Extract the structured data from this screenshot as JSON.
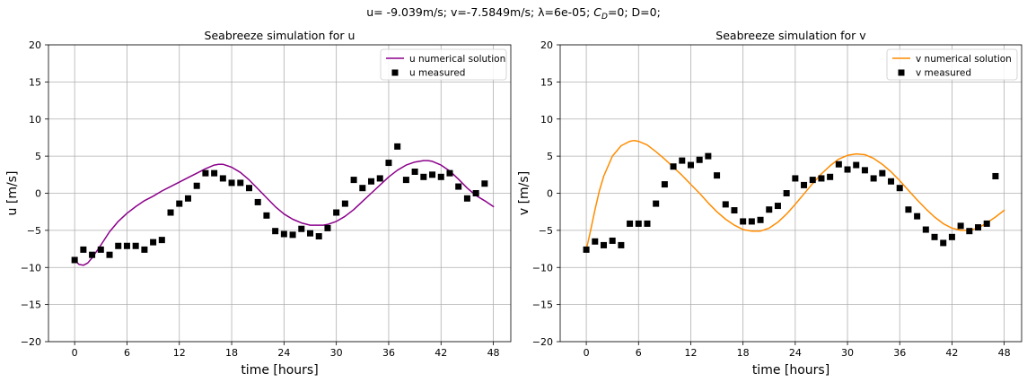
{
  "figure": {
    "suptitle": "u= -9.039m/s; v=-7.5849m/s; λ=6e-05; C_D=0; D=0;",
    "suptitle_parts": {
      "prefix": "u= -9.039m/s; v=-7.5849m/s; λ=6e-05; ",
      "cd_main": "C",
      "cd_sub": "D",
      "suffix": "=0; D=0;"
    }
  },
  "chart_data": [
    {
      "type": "line",
      "title": "Seabreeze simulation for u",
      "xlabel": "time [hours]",
      "ylabel": "u [m/s]",
      "xlim": [
        -3,
        50
      ],
      "ylim": [
        -20,
        20
      ],
      "xticks": [
        0,
        6,
        12,
        18,
        24,
        30,
        36,
        42,
        48
      ],
      "yticks": [
        -20,
        -15,
        -10,
        -5,
        0,
        5,
        10,
        15,
        20
      ],
      "grid": true,
      "legend_position": "top-right",
      "line_color": "#8b008b",
      "marker_color": "#000000",
      "series": [
        {
          "name": "u numerical solution",
          "kind": "line",
          "x": [
            0,
            0.5,
            1,
            1.5,
            2,
            3,
            4,
            5,
            6,
            7,
            8,
            9,
            10,
            11,
            12,
            13,
            14,
            15,
            16,
            16.5,
            17,
            18,
            19,
            20,
            21,
            22,
            23,
            24,
            25,
            26,
            27,
            28,
            28.5,
            29,
            30,
            31,
            32,
            33,
            34,
            35,
            36,
            37,
            38,
            39,
            40,
            40.5,
            41,
            42,
            43,
            44,
            45,
            46,
            47,
            48
          ],
          "y": [
            -9.0,
            -9.6,
            -9.7,
            -9.4,
            -8.7,
            -7.0,
            -5.2,
            -3.8,
            -2.7,
            -1.8,
            -1.0,
            -0.4,
            0.3,
            0.9,
            1.5,
            2.1,
            2.7,
            3.3,
            3.8,
            3.9,
            3.9,
            3.5,
            2.8,
            1.8,
            0.6,
            -0.6,
            -1.8,
            -2.8,
            -3.5,
            -4.0,
            -4.3,
            -4.3,
            -4.3,
            -4.2,
            -3.8,
            -3.1,
            -2.2,
            -1.1,
            0.0,
            1.1,
            2.2,
            3.1,
            3.8,
            4.2,
            4.4,
            4.4,
            4.3,
            3.8,
            3.0,
            1.9,
            0.7,
            -0.3,
            -1.0,
            -1.8
          ]
        },
        {
          "name": "u measured",
          "kind": "scatter",
          "x": [
            0,
            1,
            2,
            3,
            4,
            5,
            6,
            7,
            8,
            9,
            10,
            11,
            12,
            13,
            14,
            15,
            16,
            17,
            18,
            19,
            20,
            21,
            22,
            23,
            24,
            25,
            26,
            27,
            28,
            29,
            30,
            31,
            32,
            33,
            34,
            35,
            36,
            37,
            38,
            39,
            40,
            41,
            42,
            43,
            44,
            45,
            46,
            47
          ],
          "y": [
            -9.0,
            -7.6,
            -8.3,
            -7.6,
            -8.3,
            -7.1,
            -7.1,
            -7.1,
            -7.6,
            -6.6,
            -6.3,
            -2.6,
            -1.4,
            -0.7,
            1.0,
            2.7,
            2.7,
            2.0,
            1.4,
            1.4,
            0.7,
            -1.2,
            -3.0,
            -5.1,
            -5.5,
            -5.6,
            -4.8,
            -5.4,
            -5.8,
            -4.7,
            -2.6,
            -1.4,
            1.8,
            0.7,
            1.6,
            2.0,
            4.1,
            6.3,
            1.8,
            2.9,
            2.2,
            2.5,
            2.2,
            2.7,
            0.9,
            -0.7,
            0.0,
            1.3
          ]
        }
      ]
    },
    {
      "type": "line",
      "title": "Seabreeze simulation for v",
      "xlabel": "time [hours]",
      "ylabel": "v [m/s]",
      "xlim": [
        -3,
        50
      ],
      "ylim": [
        -20,
        20
      ],
      "xticks": [
        0,
        6,
        12,
        18,
        24,
        30,
        36,
        42,
        48
      ],
      "yticks": [
        -20,
        -15,
        -10,
        -5,
        0,
        5,
        10,
        15,
        20
      ],
      "grid": true,
      "legend_position": "top-right",
      "line_color": "#ff8c00",
      "marker_color": "#000000",
      "series": [
        {
          "name": "v numerical solution",
          "kind": "line",
          "x": [
            0,
            0.5,
            1,
            1.5,
            2,
            3,
            4,
            5,
            5.5,
            6,
            7,
            8,
            9,
            10,
            11,
            12,
            13,
            14,
            15,
            16,
            17,
            18,
            19,
            20,
            21,
            22,
            23,
            24,
            25,
            26,
            27,
            28,
            29,
            30,
            31,
            32,
            33,
            34,
            35,
            36,
            37,
            38,
            39,
            40,
            41,
            42,
            43,
            44,
            45,
            46,
            47,
            48
          ],
          "y": [
            -7.6,
            -5.0,
            -2.2,
            0.3,
            2.3,
            5.0,
            6.4,
            7.0,
            7.1,
            7.0,
            6.5,
            5.6,
            4.6,
            3.5,
            2.4,
            1.2,
            0.0,
            -1.3,
            -2.5,
            -3.5,
            -4.3,
            -4.9,
            -5.1,
            -5.1,
            -4.7,
            -3.9,
            -2.8,
            -1.5,
            -0.1,
            1.3,
            2.6,
            3.7,
            4.6,
            5.1,
            5.3,
            5.2,
            4.7,
            3.9,
            2.9,
            1.7,
            0.4,
            -0.9,
            -2.1,
            -3.2,
            -4.1,
            -4.7,
            -5.0,
            -5.0,
            -4.7,
            -4.0,
            -3.2,
            -2.3
          ]
        },
        {
          "name": "v measured",
          "kind": "scatter",
          "x": [
            0,
            1,
            2,
            3,
            4,
            5,
            6,
            7,
            8,
            9,
            10,
            11,
            12,
            13,
            14,
            15,
            16,
            17,
            18,
            19,
            20,
            21,
            22,
            23,
            24,
            25,
            26,
            27,
            28,
            29,
            30,
            31,
            32,
            33,
            34,
            35,
            36,
            37,
            38,
            39,
            40,
            41,
            42,
            43,
            44,
            45,
            46,
            47
          ],
          "y": [
            -7.6,
            -6.5,
            -7.0,
            -6.4,
            -7.0,
            -4.1,
            -4.1,
            -4.1,
            -1.4,
            1.2,
            3.6,
            4.4,
            3.8,
            4.5,
            5.0,
            2.4,
            -1.5,
            -2.3,
            -3.8,
            -3.8,
            -3.6,
            -2.2,
            -1.7,
            0.0,
            2.0,
            1.1,
            1.8,
            2.0,
            2.2,
            3.9,
            3.2,
            3.8,
            3.1,
            2.0,
            2.7,
            1.6,
            0.7,
            -2.2,
            -3.1,
            -4.9,
            -5.9,
            -6.7,
            -5.9,
            -4.4,
            -5.1,
            -4.6,
            -4.1,
            2.3
          ]
        }
      ]
    }
  ]
}
